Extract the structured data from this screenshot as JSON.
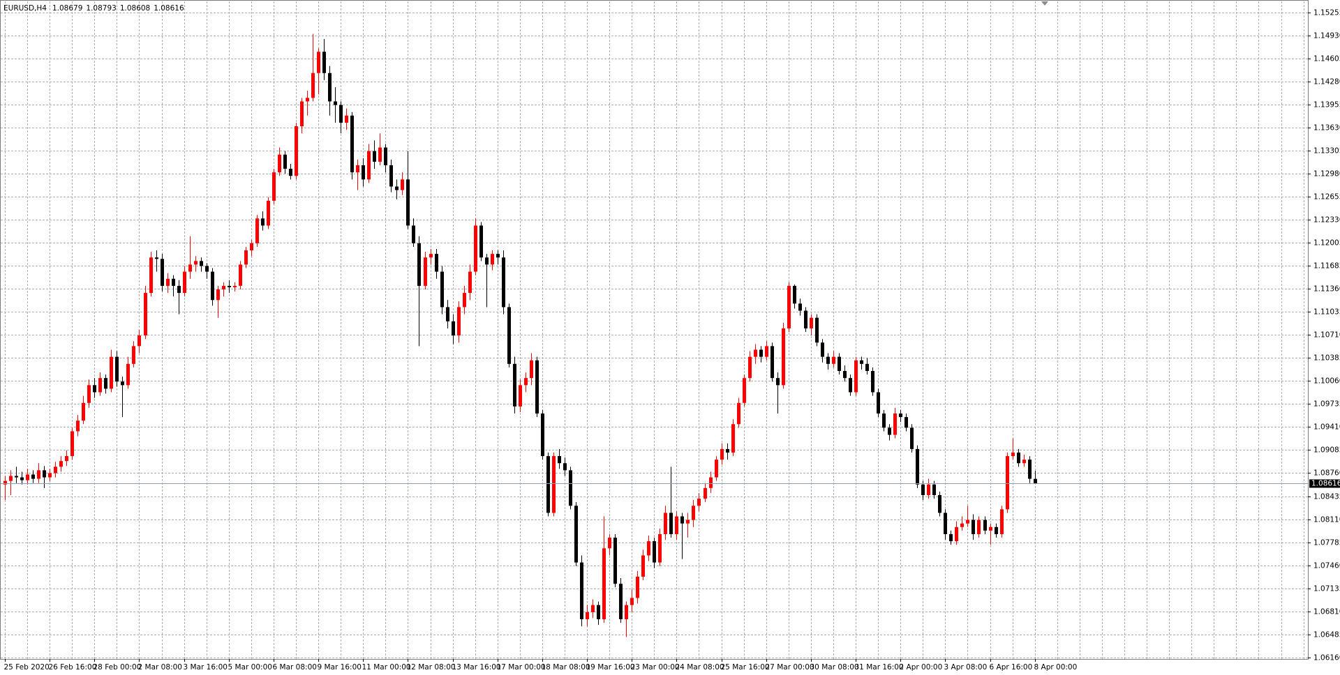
{
  "chart_data": {
    "type": "candlestick",
    "title": "EURUSD,H4",
    "up_color": "#ff0000",
    "down_color": "#000000",
    "grid": true,
    "ylim": [
      1.0614,
      1.1541
    ],
    "yticks": [
      1.15255,
      {
        "value": 1.1493,
        "label": "1.14930"
      },
      1.14605,
      {
        "value": 1.1428,
        "label": "1.14280"
      },
      1.13955,
      {
        "value": 1.1363,
        "label": "1.13630"
      },
      1.13305,
      {
        "value": 1.1298,
        "label": "1.12980"
      },
      1.12655,
      {
        "value": 1.1233,
        "label": "1.12330"
      },
      1.12005,
      1.11685,
      {
        "value": 1.1136,
        "label": "1.11360"
      },
      1.11035,
      {
        "value": 1.1071,
        "label": "1.10710"
      },
      1.10385,
      {
        "value": 1.1006,
        "label": "1.10060"
      },
      1.09735,
      {
        "value": 1.0941,
        "label": "1.09410"
      },
      1.09085,
      {
        "value": 1.0876,
        "label": "1.08760"
      },
      1.08435,
      {
        "value": 1.0811,
        "label": "1.08110"
      },
      1.07785,
      {
        "value": 1.0746,
        "label": "1.07460"
      },
      1.07135,
      {
        "value": 1.0681,
        "label": "1.06810"
      },
      1.06485,
      {
        "value": 1.0616,
        "label": "1.06160"
      }
    ],
    "categories": [
      "25 Feb 2020",
      null,
      null,
      null,
      null,
      null,
      null,
      null,
      "26 Feb 16:00",
      null,
      null,
      null,
      null,
      null,
      null,
      null,
      "28 Feb 00:00",
      null,
      null,
      null,
      null,
      null,
      null,
      null,
      "2 Mar 08:00",
      null,
      null,
      null,
      null,
      null,
      null,
      null,
      "3 Mar 16:00",
      null,
      null,
      null,
      null,
      null,
      null,
      null,
      "5 Mar 00:00",
      null,
      null,
      null,
      null,
      null,
      null,
      null,
      "6 Mar 08:00",
      null,
      null,
      null,
      null,
      null,
      null,
      null,
      "9 Mar 16:00",
      null,
      null,
      null,
      null,
      null,
      null,
      null,
      "11 Mar 00:00",
      null,
      null,
      null,
      null,
      null,
      null,
      null,
      "12 Mar 08:00",
      null,
      null,
      null,
      null,
      null,
      null,
      null,
      "13 Mar 16:00",
      null,
      null,
      null,
      null,
      null,
      null,
      null,
      "17 Mar 00:00",
      null,
      null,
      null,
      null,
      null,
      null,
      null,
      "18 Mar 08:00",
      null,
      null,
      null,
      null,
      null,
      null,
      null,
      "19 Mar 16:00",
      null,
      null,
      null,
      null,
      null,
      null,
      null,
      "23 Mar 00:00",
      null,
      null,
      null,
      null,
      null,
      null,
      null,
      "24 Mar 08:00",
      null,
      null,
      null,
      null,
      null,
      null,
      null,
      "25 Mar 16:00",
      null,
      null,
      null,
      null,
      null,
      null,
      null,
      "27 Mar 00:00",
      null,
      null,
      null,
      null,
      null,
      null,
      null,
      "30 Mar 08:00",
      null,
      null,
      null,
      null,
      null,
      null,
      null,
      "31 Mar 16:00",
      null,
      null,
      null,
      null,
      null,
      null,
      null,
      "2 Apr 00:00",
      null,
      null,
      null,
      null,
      null,
      null,
      null,
      "3 Apr 08:00",
      null,
      null,
      null,
      null,
      null,
      null,
      null,
      "6 Apr 16:00",
      null,
      null,
      null,
      null,
      null,
      null,
      null,
      "8 Apr 00:00"
    ],
    "ohlc": [
      [
        1.086,
        1.0872,
        1.0838,
        1.0865
      ],
      [
        1.0865,
        1.088,
        1.0845,
        1.0872
      ],
      [
        1.0872,
        1.0885,
        1.0862,
        1.087
      ],
      [
        1.087,
        1.0878,
        1.086,
        1.0866
      ],
      [
        1.0866,
        1.0882,
        1.086,
        1.0874
      ],
      [
        1.0874,
        1.088,
        1.0862,
        1.0868
      ],
      [
        1.0868,
        1.089,
        1.0862,
        1.088
      ],
      [
        1.088,
        1.0886,
        1.0855,
        1.087
      ],
      [
        1.087,
        1.0882,
        1.0864,
        1.0876
      ],
      [
        1.0876,
        1.0892,
        1.087,
        1.0885
      ],
      [
        1.0885,
        1.09,
        1.0878,
        1.0893
      ],
      [
        1.0893,
        1.0908,
        1.0886,
        1.09
      ],
      [
        1.09,
        1.094,
        1.0895,
        1.0935
      ],
      [
        1.0935,
        1.0958,
        1.0928,
        1.095
      ],
      [
        1.095,
        1.0985,
        1.0945,
        1.0975
      ],
      [
        1.0975,
        1.1008,
        1.0968,
        1.1
      ],
      [
        1.1,
        1.101,
        1.0982,
        1.099
      ],
      [
        1.099,
        1.1018,
        1.0985,
        1.101
      ],
      [
        1.101,
        1.1015,
        1.0988,
        1.0995
      ],
      [
        1.0995,
        1.105,
        1.099,
        1.104
      ],
      [
        1.104,
        1.1048,
        1.0998,
        1.1005
      ],
      [
        1.1005,
        1.1012,
        1.0955,
        1.1
      ],
      [
        1.1,
        1.104,
        1.0995,
        1.103
      ],
      [
        1.103,
        1.1062,
        1.1025,
        1.1055
      ],
      [
        1.1055,
        1.1078,
        1.1045,
        1.107
      ],
      [
        1.107,
        1.114,
        1.1065,
        1.113
      ],
      [
        1.113,
        1.1188,
        1.1125,
        1.118
      ],
      [
        1.118,
        1.119,
        1.116,
        1.1178
      ],
      [
        1.1178,
        1.1185,
        1.1132,
        1.114
      ],
      [
        1.114,
        1.1158,
        1.113,
        1.115
      ],
      [
        1.115,
        1.1155,
        1.1125,
        1.114
      ],
      [
        1.114,
        1.1148,
        1.11,
        1.113
      ],
      [
        1.113,
        1.1168,
        1.1125,
        1.116
      ],
      [
        1.116,
        1.121,
        1.115,
        1.117
      ],
      [
        1.117,
        1.1182,
        1.116,
        1.1175
      ],
      [
        1.1175,
        1.118,
        1.116,
        1.1168
      ],
      [
        1.1168,
        1.1172,
        1.115,
        1.116
      ],
      [
        1.116,
        1.1165,
        1.1112,
        1.112
      ],
      [
        1.112,
        1.114,
        1.1095,
        1.1135
      ],
      [
        1.1135,
        1.1145,
        1.1125,
        1.114
      ],
      [
        1.114,
        1.1148,
        1.113,
        1.1138
      ],
      [
        1.1138,
        1.1145,
        1.1132,
        1.114
      ],
      [
        1.114,
        1.1175,
        1.1135,
        1.117
      ],
      [
        1.117,
        1.1195,
        1.1165,
        1.119
      ],
      [
        1.119,
        1.1205,
        1.1182,
        1.12
      ],
      [
        1.12,
        1.124,
        1.1195,
        1.1235
      ],
      [
        1.1235,
        1.1245,
        1.1218,
        1.1225
      ],
      [
        1.1225,
        1.1265,
        1.122,
        1.126
      ],
      [
        1.126,
        1.1305,
        1.1255,
        1.13
      ],
      [
        1.13,
        1.1335,
        1.1295,
        1.1325
      ],
      [
        1.1325,
        1.133,
        1.1298,
        1.1305
      ],
      [
        1.1305,
        1.1312,
        1.129,
        1.1295
      ],
      [
        1.1295,
        1.137,
        1.129,
        1.1365
      ],
      [
        1.1365,
        1.1405,
        1.1355,
        1.14
      ],
      [
        1.14,
        1.1415,
        1.138,
        1.1405
      ],
      [
        1.1405,
        1.1495,
        1.14,
        1.144
      ],
      [
        1.144,
        1.1475,
        1.141,
        1.147
      ],
      [
        1.147,
        1.1488,
        1.143,
        1.144
      ],
      [
        1.144,
        1.145,
        1.138,
        1.14
      ],
      [
        1.14,
        1.142,
        1.137,
        1.1395
      ],
      [
        1.1395,
        1.14,
        1.1355,
        1.137
      ],
      [
        1.137,
        1.139,
        1.136,
        1.138
      ],
      [
        1.138,
        1.1385,
        1.129,
        1.13
      ],
      [
        1.13,
        1.1318,
        1.1275,
        1.131
      ],
      [
        1.131,
        1.132,
        1.128,
        1.129
      ],
      [
        1.129,
        1.134,
        1.1285,
        1.133
      ],
      [
        1.133,
        1.1345,
        1.1305,
        1.1315
      ],
      [
        1.1315,
        1.1355,
        1.131,
        1.1335
      ],
      [
        1.1335,
        1.134,
        1.13,
        1.131
      ],
      [
        1.131,
        1.1318,
        1.1272,
        1.128
      ],
      [
        1.128,
        1.129,
        1.1262,
        1.1275
      ],
      [
        1.1275,
        1.13,
        1.1268,
        1.129
      ],
      [
        1.129,
        1.133,
        1.122,
        1.1225
      ],
      [
        1.1225,
        1.1235,
        1.1195,
        1.12
      ],
      [
        1.12,
        1.121,
        1.1055,
        1.114
      ],
      [
        1.114,
        1.1188,
        1.1135,
        1.118
      ],
      [
        1.118,
        1.1192,
        1.117,
        1.1185
      ],
      [
        1.1185,
        1.1192,
        1.115,
        1.116
      ],
      [
        1.116,
        1.1168,
        1.11,
        1.111
      ],
      [
        1.111,
        1.112,
        1.108,
        1.109
      ],
      [
        1.109,
        1.11,
        1.1058,
        1.107
      ],
      [
        1.107,
        1.1118,
        1.106,
        1.111
      ],
      [
        1.111,
        1.114,
        1.11,
        1.113
      ],
      [
        1.113,
        1.117,
        1.112,
        1.116
      ],
      [
        1.116,
        1.1235,
        1.1155,
        1.1225
      ],
      [
        1.1225,
        1.123,
        1.1175,
        1.118
      ],
      [
        1.118,
        1.1185,
        1.111,
        1.117
      ],
      [
        1.117,
        1.119,
        1.1162,
        1.1185
      ],
      [
        1.1185,
        1.119,
        1.117,
        1.118
      ],
      [
        1.118,
        1.119,
        1.11,
        1.111
      ],
      [
        1.111,
        1.1115,
        1.1025,
        1.103
      ],
      [
        1.103,
        1.104,
        1.096,
        1.097
      ],
      [
        1.097,
        1.1008,
        1.0962,
        1.1
      ],
      [
        1.1,
        1.1018,
        1.099,
        1.101
      ],
      [
        1.101,
        1.1045,
        1.1,
        1.1035
      ],
      [
        1.1035,
        1.104,
        1.0955,
        1.096
      ],
      [
        1.096,
        1.0965,
        1.0895,
        1.09
      ],
      [
        1.09,
        1.0905,
        1.0815,
        1.082
      ],
      [
        1.082,
        1.0905,
        1.0815,
        1.09
      ],
      [
        1.09,
        1.091,
        1.0882,
        1.089
      ],
      [
        1.089,
        1.0898,
        1.0872,
        1.088
      ],
      [
        1.088,
        1.0885,
        1.0825,
        1.083
      ],
      [
        1.083,
        1.0835,
        1.0745,
        1.075
      ],
      [
        1.075,
        1.076,
        1.066,
        1.067
      ],
      [
        1.067,
        1.069,
        1.066,
        1.068
      ],
      [
        1.068,
        1.0698,
        1.0672,
        1.069
      ],
      [
        1.069,
        1.0695,
        1.0662,
        1.067
      ],
      [
        1.067,
        1.0815,
        1.0665,
        1.077
      ],
      [
        1.077,
        1.079,
        1.076,
        1.0785
      ],
      [
        1.0785,
        1.079,
        1.0715,
        1.072
      ],
      [
        1.072,
        1.0728,
        1.0665,
        1.067
      ],
      [
        1.067,
        1.0695,
        1.0645,
        1.069
      ],
      [
        1.069,
        1.0712,
        1.068,
        1.07
      ],
      [
        1.07,
        1.0738,
        1.0692,
        1.073
      ],
      [
        1.073,
        1.0768,
        1.0725,
        1.076
      ],
      [
        1.076,
        1.0788,
        1.0752,
        1.078
      ],
      [
        1.078,
        1.0785,
        1.0742,
        1.075
      ],
      [
        1.075,
        1.0798,
        1.0745,
        1.079
      ],
      [
        1.079,
        1.083,
        1.0782,
        1.082
      ],
      [
        1.082,
        1.0885,
        1.0785,
        1.079
      ],
      [
        1.079,
        1.0822,
        1.0782,
        1.0815
      ],
      [
        1.0815,
        1.082,
        1.0755,
        1.0805
      ],
      [
        1.0805,
        1.082,
        1.0785,
        1.081
      ],
      [
        1.081,
        1.0838,
        1.08,
        1.083
      ],
      [
        1.083,
        1.0848,
        1.0822,
        1.084
      ],
      [
        1.084,
        1.0862,
        1.0835,
        1.0855
      ],
      [
        1.0855,
        1.0878,
        1.0848,
        1.087
      ],
      [
        1.087,
        1.09,
        1.0865,
        1.0895
      ],
      [
        1.0895,
        1.0918,
        1.0888,
        1.091
      ],
      [
        1.091,
        1.0918,
        1.0895,
        1.0905
      ],
      [
        1.0905,
        1.0952,
        1.09,
        1.0945
      ],
      [
        1.0945,
        1.0982,
        1.094,
        1.0975
      ],
      [
        1.0975,
        1.1015,
        1.097,
        1.101
      ],
      [
        1.101,
        1.1048,
        1.1005,
        1.104
      ],
      [
        1.104,
        1.1058,
        1.103,
        1.105
      ],
      [
        1.105,
        1.1055,
        1.1032,
        1.104
      ],
      [
        1.104,
        1.1062,
        1.1035,
        1.1055
      ],
      [
        1.1055,
        1.106,
        1.1005,
        1.101
      ],
      [
        1.101,
        1.1018,
        1.096,
        1.1
      ],
      [
        1.1,
        1.1088,
        1.0995,
        1.108
      ],
      [
        1.108,
        1.1145,
        1.1075,
        1.114
      ],
      [
        1.114,
        1.1142,
        1.1108,
        1.1115
      ],
      [
        1.1115,
        1.1122,
        1.1098,
        1.1105
      ],
      [
        1.1105,
        1.111,
        1.1075,
        1.108
      ],
      [
        1.108,
        1.11,
        1.107,
        1.1095
      ],
      [
        1.1095,
        1.11,
        1.1055,
        1.106
      ],
      [
        1.106,
        1.1065,
        1.1032,
        1.104
      ],
      [
        1.104,
        1.1045,
        1.1022,
        1.103
      ],
      [
        1.103,
        1.1048,
        1.1025,
        1.104
      ],
      [
        1.104,
        1.1045,
        1.1015,
        1.102
      ],
      [
        1.102,
        1.1028,
        1.1005,
        1.101
      ],
      [
        1.101,
        1.1015,
        1.0985,
        1.099
      ],
      [
        1.099,
        1.104,
        1.0985,
        1.1035
      ],
      [
        1.1035,
        1.104,
        1.1022,
        1.103
      ],
      [
        1.103,
        1.1038,
        1.1015,
        1.102
      ],
      [
        1.102,
        1.1025,
        1.0985,
        1.099
      ],
      [
        1.099,
        1.0995,
        1.0955,
        1.096
      ],
      [
        1.096,
        1.0965,
        1.0935,
        1.094
      ],
      [
        1.094,
        1.0945,
        1.0922,
        1.093
      ],
      [
        1.093,
        1.0968,
        1.0925,
        1.096
      ],
      [
        1.096,
        1.0965,
        1.0948,
        1.0955
      ],
      [
        1.0955,
        1.096,
        1.0935,
        1.094
      ],
      [
        1.094,
        1.0945,
        1.0905,
        1.091
      ],
      [
        1.091,
        1.0915,
        1.0855,
        1.086
      ],
      [
        1.086,
        1.0865,
        1.0838,
        1.0845
      ],
      [
        1.0845,
        1.0868,
        1.084,
        1.086
      ],
      [
        1.086,
        1.0865,
        1.084,
        1.0845
      ],
      [
        1.0845,
        1.085,
        1.0815,
        1.082
      ],
      [
        1.082,
        1.0825,
        1.0782,
        1.079
      ],
      [
        1.079,
        1.0795,
        1.0775,
        1.078
      ],
      [
        1.078,
        1.0808,
        1.0775,
        1.08
      ],
      [
        1.08,
        1.0815,
        1.0795,
        1.0805
      ],
      [
        1.0805,
        1.083,
        1.08,
        1.081
      ],
      [
        1.081,
        1.0818,
        1.0782,
        1.079
      ],
      [
        1.079,
        1.0815,
        1.0785,
        1.081
      ],
      [
        1.081,
        1.0815,
        1.079,
        1.0795
      ],
      [
        1.0795,
        1.0805,
        1.0775,
        1.08
      ],
      [
        1.08,
        1.0805,
        1.0785,
        1.079
      ],
      [
        1.079,
        1.083,
        1.0785,
        1.0825
      ],
      [
        1.0825,
        1.0905,
        1.082,
        1.09
      ],
      [
        1.09,
        1.0925,
        1.0895,
        1.0905
      ],
      [
        1.0905,
        1.091,
        1.0885,
        1.089
      ],
      [
        1.089,
        1.0902,
        1.0885,
        1.0895
      ],
      [
        1.0895,
        1.09,
        1.0862,
        1.0868
      ],
      [
        1.08679,
        1.08793,
        1.08608,
        1.08616
      ]
    ]
  }
}
